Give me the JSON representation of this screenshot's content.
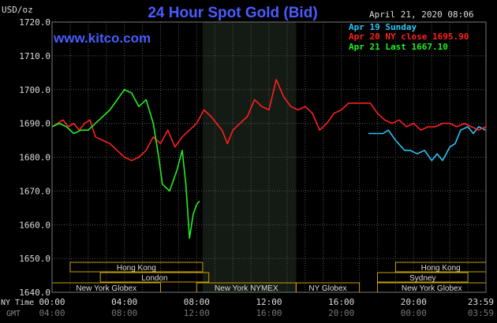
{
  "header": {
    "unit": "USD/oz",
    "title": "24 Hour Spot Gold (Bid)",
    "site": "www.kitco.com",
    "date": "April 21, 2020 08:06"
  },
  "legend": [
    {
      "label": "Apr 19 Sunday",
      "color": "#29c5f6"
    },
    {
      "label": "Apr 20 NY close 1695.90",
      "color": "#ff2020"
    },
    {
      "label": "Apr 21 Last 1667.10",
      "color": "#22ee22"
    }
  ],
  "axis_labels": {
    "ny_time": "NY Time",
    "gmt": "GMT"
  },
  "sessions": [
    {
      "label": "Hong Kong",
      "row": 0,
      "start": 1,
      "end": 8.33
    },
    {
      "label": "London",
      "row": 1,
      "start": 2.67,
      "end": 8.67
    },
    {
      "label": "New York Globex",
      "row": 2,
      "start": 0,
      "end": 6
    },
    {
      "label": "New York NYMEX",
      "row": 2,
      "start": 8,
      "end": 13.5
    },
    {
      "label": "NY Globex",
      "row": 2,
      "start": 13.5,
      "end": 17
    },
    {
      "label": "Hong Kong",
      "row": 0,
      "start": 19,
      "end": 24
    },
    {
      "label": "Sydney",
      "row": 1,
      "start": 18,
      "end": 23
    },
    {
      "label": "New York Globex",
      "row": 2,
      "start": 18,
      "end": 24
    }
  ],
  "chart_data": {
    "type": "line",
    "ylim": [
      1640,
      1720
    ],
    "xlim": [
      0,
      24
    ],
    "yticks": [
      "1720.0",
      "1710.0",
      "1700.0",
      "1690.0",
      "1680.0",
      "1670.0",
      "1660.0",
      "1650.0",
      "1640.0"
    ],
    "ytick_values": [
      1720,
      1710,
      1700,
      1690,
      1680,
      1670,
      1660,
      1650,
      1640
    ],
    "xticks_ny": [
      "00:00",
      "04:00",
      "08:00",
      "12:00",
      "16:00",
      "20:00",
      "23:59"
    ],
    "xticks_gmt": [
      "04:00",
      "08:00",
      "12:00",
      "16:00",
      "20:00",
      "00:00",
      "03:59"
    ],
    "xtick_hours": [
      0,
      4,
      8,
      12,
      16,
      20,
      23.98
    ],
    "shaded_hours": [
      8.33,
      13.5
    ],
    "grid": true,
    "series": [
      {
        "name": "Apr 19 Sunday",
        "color": "#29c5f6",
        "x": [
          17.5,
          18.3,
          18.6,
          19.0,
          19.5,
          19.8,
          20.2,
          20.6,
          21.0,
          21.3,
          21.6,
          22.0,
          22.3,
          22.6,
          23.0,
          23.3,
          23.6,
          23.98
        ],
        "y": [
          1687,
          1687,
          1688,
          1685,
          1682,
          1682,
          1681,
          1682,
          1679,
          1681,
          1679,
          1683,
          1684,
          1688,
          1689,
          1687,
          1689,
          1688
        ]
      },
      {
        "name": "Apr 20 NY close 1695.90",
        "color": "#ff2020",
        "x": [
          0,
          0.3,
          0.6,
          0.9,
          1.2,
          1.5,
          1.8,
          2.1,
          2.4,
          2.8,
          3.2,
          3.6,
          4.0,
          4.4,
          4.8,
          5.2,
          5.6,
          6.0,
          6.4,
          6.8,
          7.2,
          7.6,
          8.0,
          8.4,
          8.8,
          9.1,
          9.4,
          9.7,
          10.0,
          10.4,
          10.8,
          11.2,
          11.6,
          12.0,
          12.4,
          12.8,
          13.2,
          13.6,
          14.0,
          14.4,
          14.8,
          15.2,
          15.6,
          16.0,
          16.4,
          16.8,
          17.2,
          17.6,
          18.0,
          18.4,
          18.8,
          19.2,
          19.6,
          20.0,
          20.4,
          20.8,
          21.2,
          21.6,
          22.0,
          22.4,
          22.8,
          23.2,
          23.6,
          23.98
        ],
        "y": [
          1689,
          1690,
          1691,
          1689,
          1690,
          1688,
          1690,
          1691,
          1686,
          1685,
          1684,
          1682,
          1680,
          1679,
          1680,
          1682,
          1686,
          1684,
          1688,
          1683,
          1686,
          1688,
          1690,
          1694,
          1692,
          1690,
          1688,
          1684,
          1688,
          1690,
          1692,
          1697,
          1695,
          1694,
          1703,
          1698,
          1695,
          1694,
          1695,
          1693,
          1688,
          1690,
          1693,
          1694,
          1696,
          1696,
          1696,
          1696,
          1693,
          1691,
          1690,
          1691,
          1689,
          1690,
          1688,
          1689,
          1689,
          1690,
          1690,
          1689,
          1690,
          1689,
          1688,
          1689
        ]
      },
      {
        "name": "Apr 21 Last 1667.10",
        "color": "#22ee22",
        "x": [
          0,
          0.4,
          0.8,
          1.2,
          1.6,
          2.0,
          2.4,
          2.8,
          3.2,
          3.6,
          4.0,
          4.4,
          4.8,
          5.2,
          5.6,
          5.9,
          6.1,
          6.5,
          6.9,
          7.2,
          7.4,
          7.6,
          7.8,
          8.0,
          8.15
        ],
        "y": [
          1689,
          1690,
          1689,
          1687,
          1688,
          1688,
          1690,
          1692,
          1694,
          1697,
          1700,
          1699,
          1695,
          1697,
          1690,
          1680,
          1672,
          1670,
          1676,
          1682,
          1672,
          1656,
          1663,
          1666,
          1667
        ]
      }
    ]
  }
}
